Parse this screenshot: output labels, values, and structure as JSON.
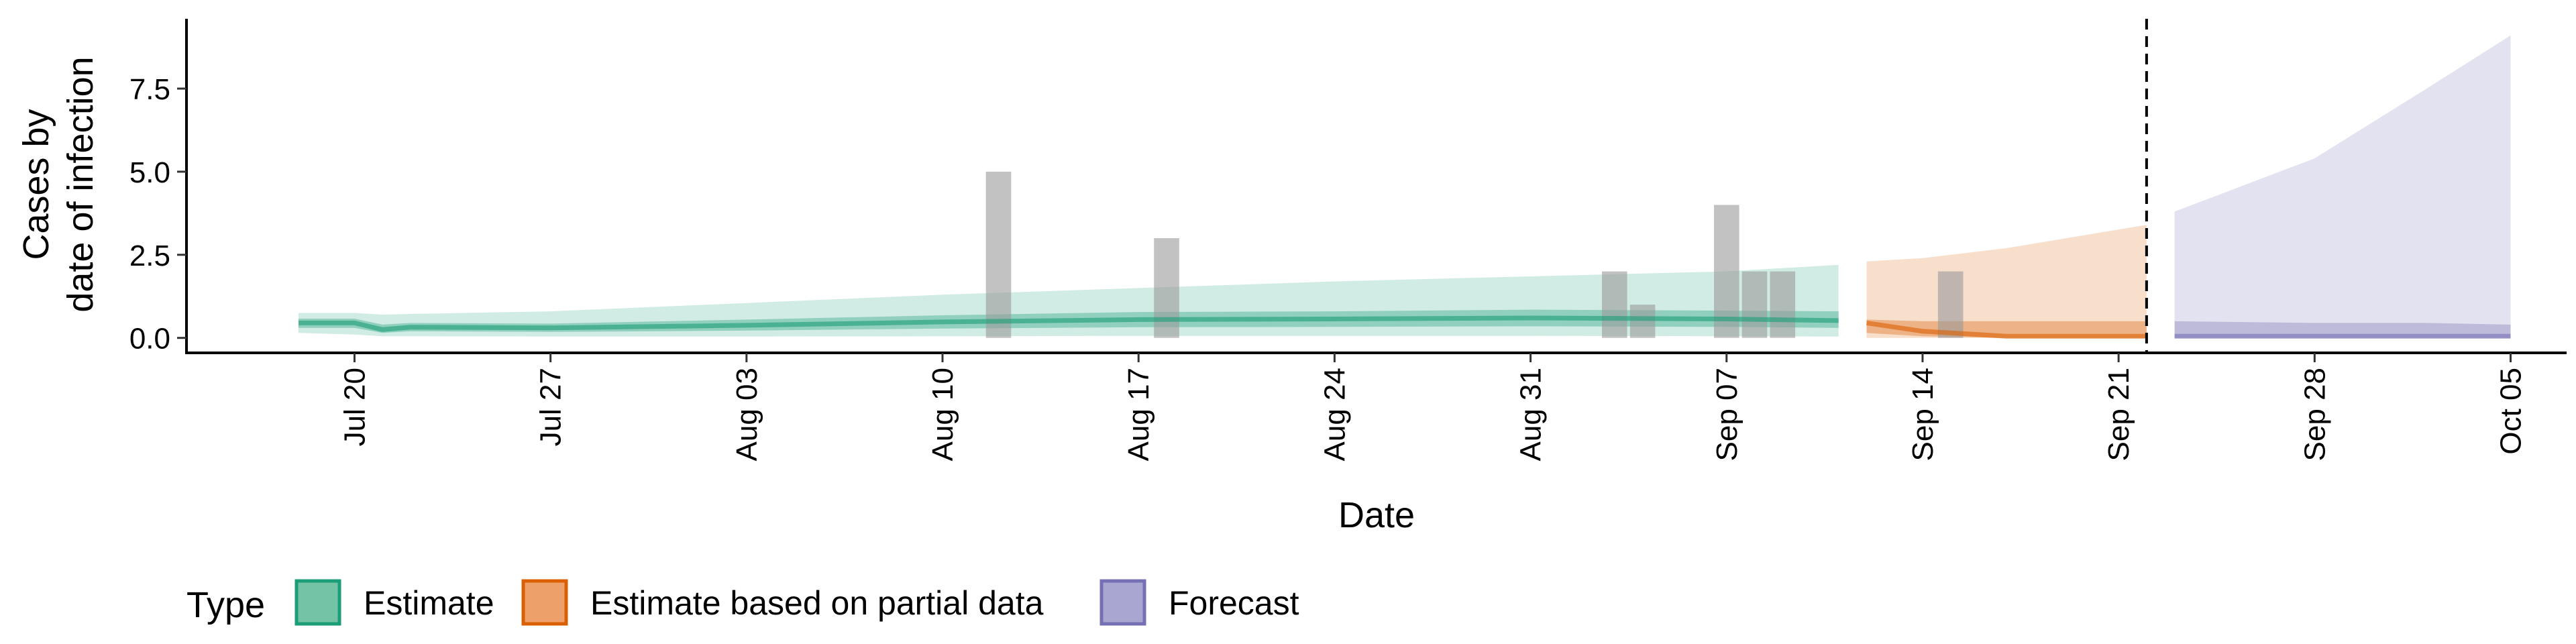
{
  "chart_data": {
    "type": "area",
    "xlabel": "Date",
    "ylabel_lines": [
      "Cases by",
      "date of infection"
    ],
    "x_ticks": [
      "2020-07-20",
      "2020-07-27",
      "2020-08-03",
      "2020-08-10",
      "2020-08-17",
      "2020-08-24",
      "2020-08-31",
      "2020-09-07",
      "2020-09-14",
      "2020-09-21",
      "2020-09-28",
      "2020-10-05"
    ],
    "x_tick_labels": [
      "Jul 20",
      "Jul 27",
      "Aug 03",
      "Aug 10",
      "Aug 17",
      "Aug 24",
      "Aug 31",
      "Sep 07",
      "Sep 14",
      "Sep 21",
      "Sep 28",
      "Oct 05"
    ],
    "x_range": [
      "2020-07-14",
      "2020-10-07"
    ],
    "y_ticks": [
      0,
      2.5,
      5,
      7.5
    ],
    "y_tick_labels": [
      "0.0",
      "2.5",
      "5.0",
      "7.5"
    ],
    "ylim": [
      -0.45,
      9.6
    ],
    "forecast_line_date": "2020-09-22",
    "legend": {
      "position": "bottom",
      "title": "Type",
      "items": [
        {
          "label": "Estimate",
          "fill": "#74c3a6",
          "stroke": "#1b9e77"
        },
        {
          "label": "Estimate based on partial data",
          "fill": "#eea06a",
          "stroke": "#d95f02"
        },
        {
          "label": "Forecast",
          "fill": "#aaa6d2",
          "stroke": "#7570b3"
        }
      ]
    },
    "observed_cases": [
      {
        "date": "2020-08-12",
        "value": 5
      },
      {
        "date": "2020-08-18",
        "value": 3
      },
      {
        "date": "2020-09-03",
        "value": 2
      },
      {
        "date": "2020-09-04",
        "value": 1
      },
      {
        "date": "2020-09-07",
        "value": 4
      },
      {
        "date": "2020-09-08",
        "value": 2
      },
      {
        "date": "2020-09-09",
        "value": 2
      },
      {
        "date": "2020-09-15",
        "value": 2
      }
    ],
    "series": [
      {
        "type": "Estimate",
        "color": "#1b9e77",
        "points": [
          {
            "date": "2020-07-18",
            "median": 0.45,
            "lower_90": 0.15,
            "upper_90": 0.75,
            "lower_50": 0.3,
            "upper_50": 0.58
          },
          {
            "date": "2020-07-20",
            "median": 0.45,
            "lower_90": 0.1,
            "upper_90": 0.75,
            "lower_50": 0.3,
            "upper_50": 0.58
          },
          {
            "date": "2020-07-21",
            "median": 0.25,
            "lower_90": 0.05,
            "upper_90": 0.7,
            "lower_50": 0.15,
            "upper_50": 0.4
          },
          {
            "date": "2020-07-22",
            "median": 0.32,
            "lower_90": 0.05,
            "upper_90": 0.72,
            "lower_50": 0.2,
            "upper_50": 0.45
          },
          {
            "date": "2020-07-27",
            "median": 0.3,
            "lower_90": 0.04,
            "upper_90": 0.8,
            "lower_50": 0.18,
            "upper_50": 0.43
          },
          {
            "date": "2020-08-03",
            "median": 0.38,
            "lower_90": 0.04,
            "upper_90": 1.05,
            "lower_50": 0.22,
            "upper_50": 0.55
          },
          {
            "date": "2020-08-10",
            "median": 0.48,
            "lower_90": 0.05,
            "upper_90": 1.3,
            "lower_50": 0.28,
            "upper_50": 0.68
          },
          {
            "date": "2020-08-17",
            "median": 0.55,
            "lower_90": 0.06,
            "upper_90": 1.5,
            "lower_50": 0.32,
            "upper_50": 0.78
          },
          {
            "date": "2020-08-24",
            "median": 0.57,
            "lower_90": 0.06,
            "upper_90": 1.7,
            "lower_50": 0.33,
            "upper_50": 0.8
          },
          {
            "date": "2020-08-31",
            "median": 0.6,
            "lower_90": 0.06,
            "upper_90": 1.85,
            "lower_50": 0.35,
            "upper_50": 0.85
          },
          {
            "date": "2020-09-07",
            "median": 0.57,
            "lower_90": 0.05,
            "upper_90": 2.0,
            "lower_50": 0.33,
            "upper_50": 0.82
          },
          {
            "date": "2020-09-11",
            "median": 0.52,
            "lower_90": 0.04,
            "upper_90": 2.2,
            "lower_50": 0.3,
            "upper_50": 0.8
          }
        ]
      },
      {
        "type": "Estimate based on partial data",
        "color": "#d95f02",
        "points": [
          {
            "date": "2020-09-12",
            "median": 0.45,
            "lower_90": 0.0,
            "upper_90": 2.3,
            "lower_50": 0.15,
            "upper_50": 0.55
          },
          {
            "date": "2020-09-14",
            "median": 0.2,
            "lower_90": 0.0,
            "upper_90": 2.4,
            "lower_50": 0.05,
            "upper_50": 0.5
          },
          {
            "date": "2020-09-17",
            "median": 0.05,
            "lower_90": 0.0,
            "upper_90": 2.7,
            "lower_50": 0.0,
            "upper_50": 0.5
          },
          {
            "date": "2020-09-22",
            "median": 0.05,
            "lower_90": 0.0,
            "upper_90": 3.4,
            "lower_50": 0.0,
            "upper_50": 0.5
          }
        ]
      },
      {
        "type": "Forecast",
        "color": "#7570b3",
        "points": [
          {
            "date": "2020-09-23",
            "median": 0.05,
            "lower_90": 0.0,
            "upper_90": 3.8,
            "lower_50": 0.0,
            "upper_50": 0.5
          },
          {
            "date": "2020-09-28",
            "median": 0.05,
            "lower_90": 0.0,
            "upper_90": 5.4,
            "lower_50": 0.0,
            "upper_50": 0.45
          },
          {
            "date": "2020-10-02",
            "median": 0.05,
            "lower_90": 0.0,
            "upper_90": 7.5,
            "lower_50": 0.0,
            "upper_50": 0.45
          },
          {
            "date": "2020-10-05",
            "median": 0.05,
            "lower_90": 0.0,
            "upper_90": 9.1,
            "lower_50": 0.0,
            "upper_50": 0.4
          }
        ]
      }
    ]
  }
}
